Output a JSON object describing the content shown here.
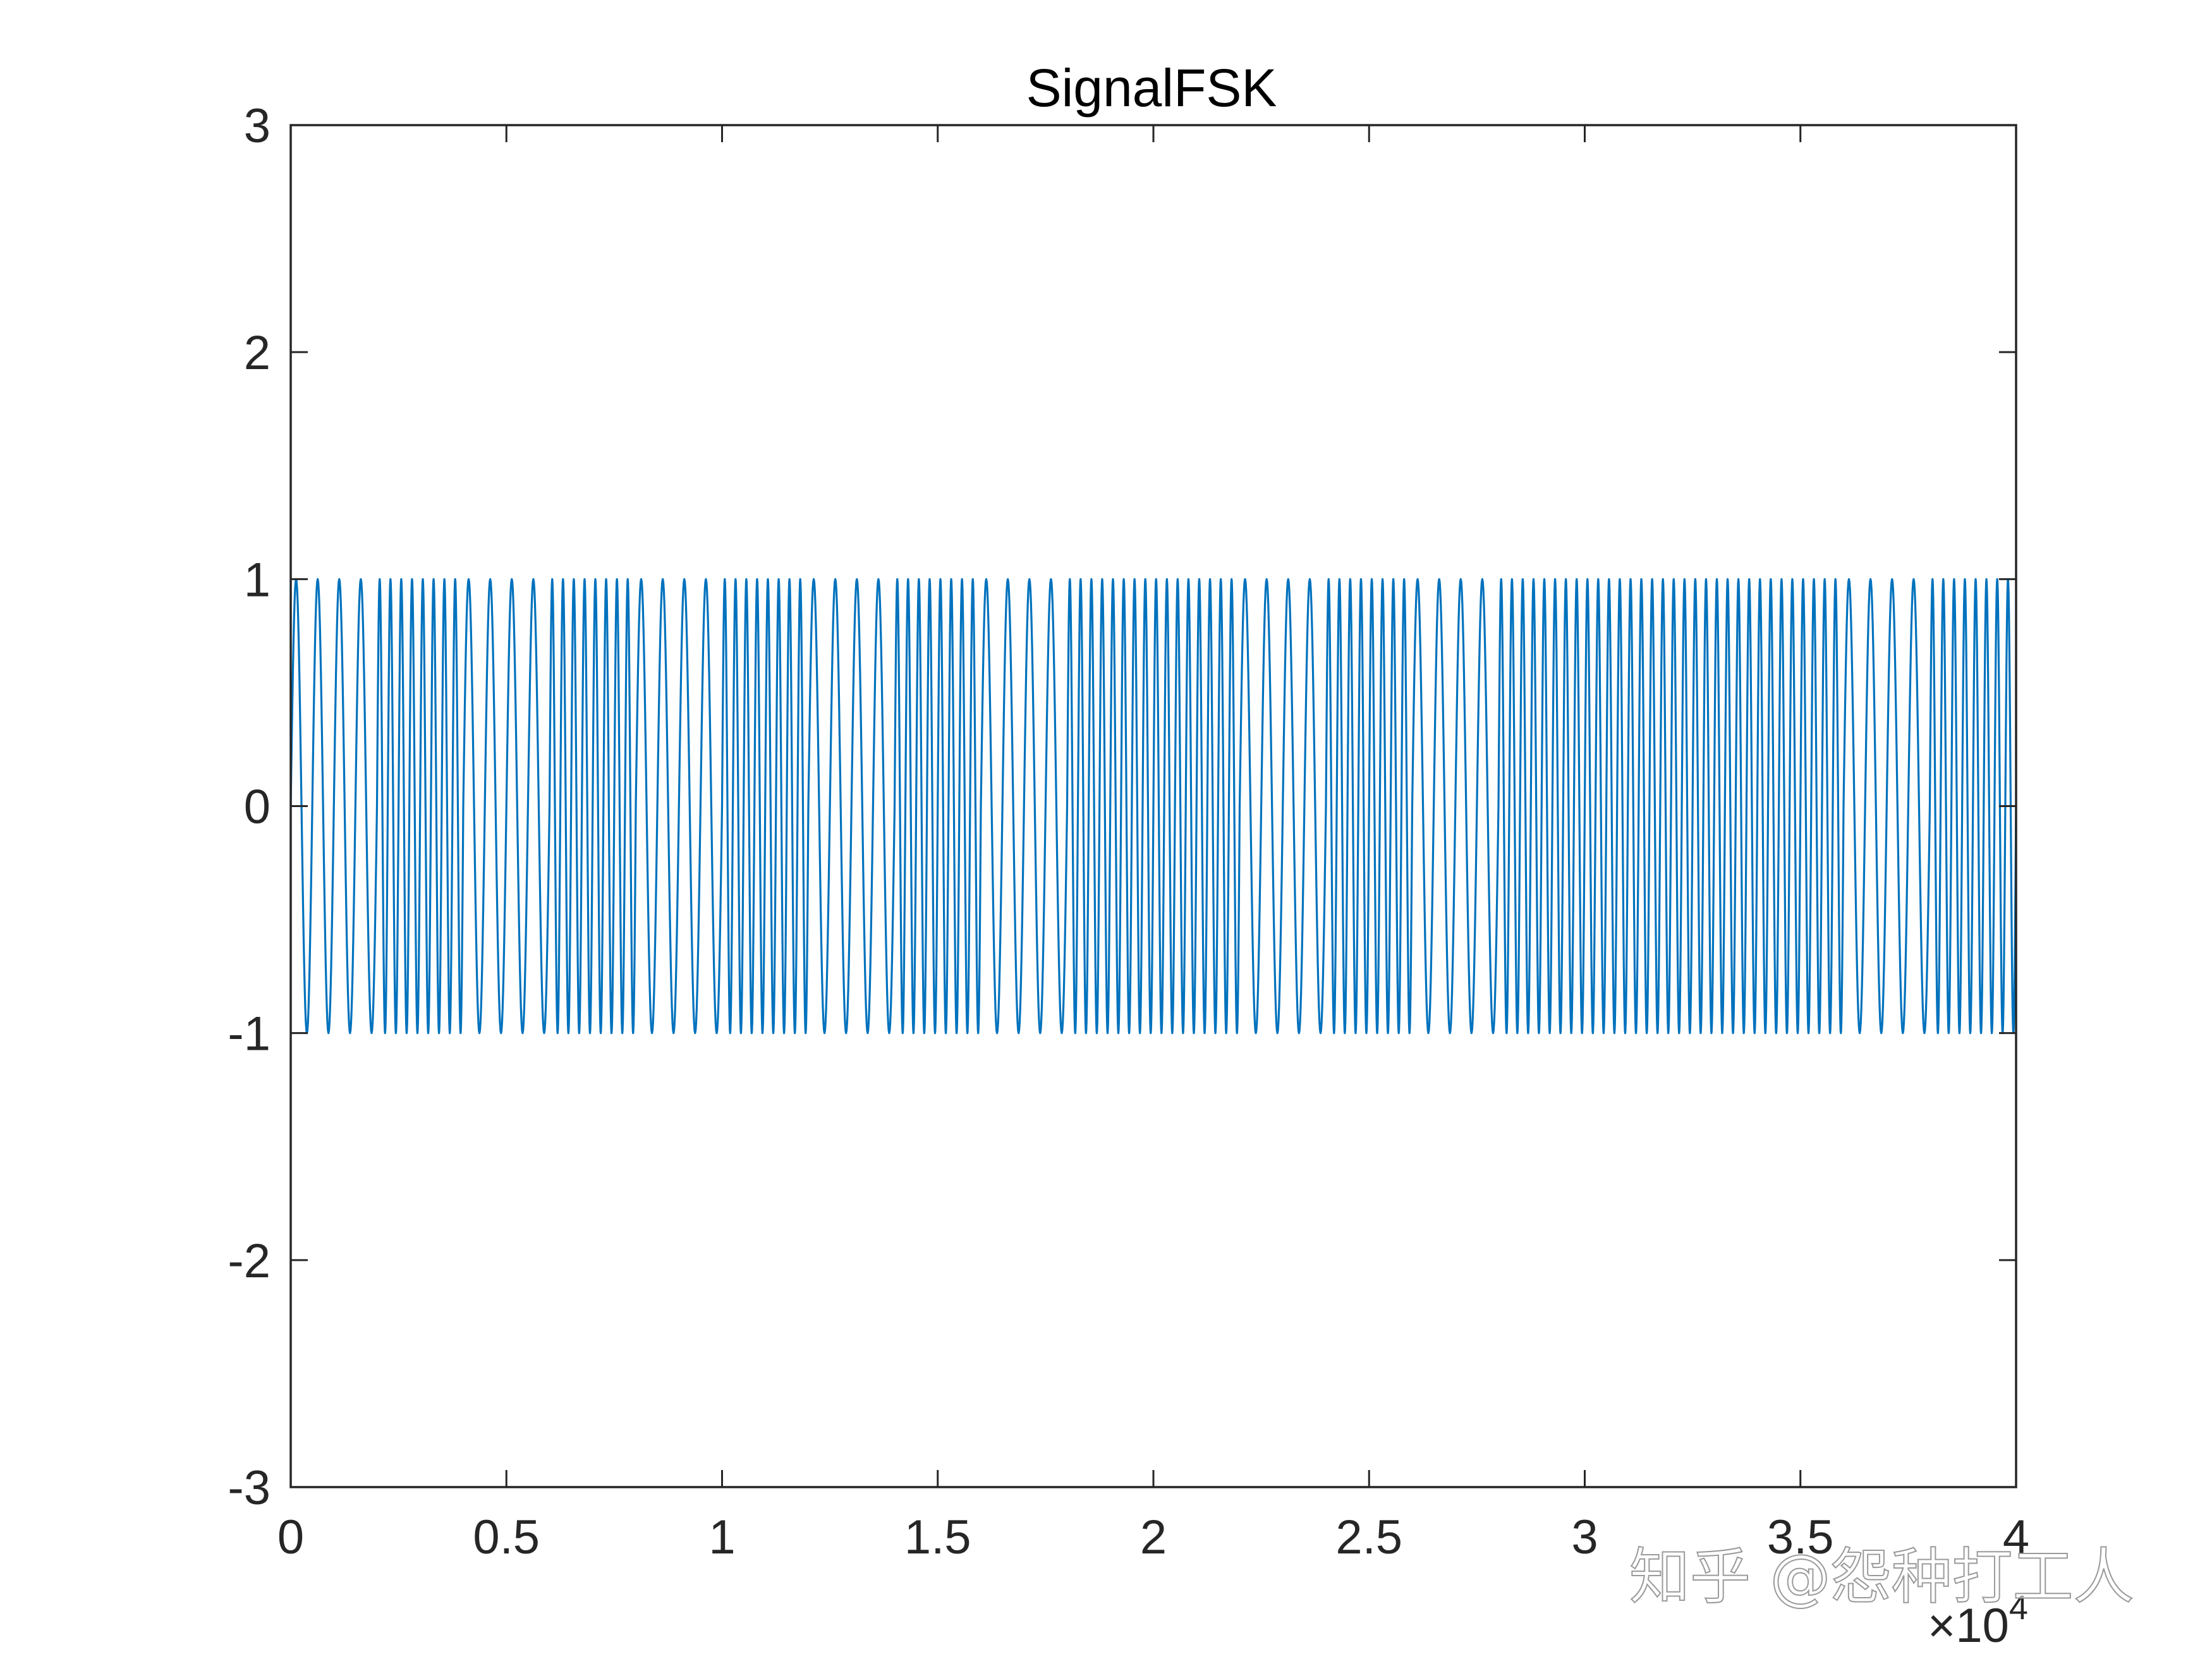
{
  "chart_data": {
    "type": "line",
    "title": "SignalFSK",
    "xlabel": "",
    "ylabel": "",
    "xlim": [
      0,
      40000
    ],
    "ylim": [
      -3,
      3
    ],
    "x_exponent_label": {
      "base": "×10",
      "power": "4"
    },
    "x_ticks": [
      0,
      5000,
      10000,
      15000,
      20000,
      25000,
      30000,
      35000,
      40000
    ],
    "x_tick_labels": [
      "0",
      "0.5",
      "1",
      "1.5",
      "2",
      "2.5",
      "3",
      "3.5",
      "4"
    ],
    "y_ticks": [
      -3,
      -2,
      -1,
      0,
      1,
      2,
      3
    ],
    "y_tick_labels": [
      "-3",
      "-2",
      "-1",
      "0",
      "1",
      "2",
      "3"
    ],
    "grid": false,
    "series": [
      {
        "color": "#0072BD",
        "amplitude": 1,
        "symbol_duration": 2000,
        "bits": [
          0,
          1,
          0,
          1,
          0,
          1,
          0,
          1,
          0,
          1,
          1,
          0,
          1,
          0,
          1,
          1,
          1,
          1,
          0,
          1
        ],
        "cycles_per_symbol": {
          "0": 4,
          "1": 8
        }
      }
    ]
  },
  "watermark": "知乎 @怨种打工人",
  "colors": {
    "axes": "#262626",
    "line": "#0072BD",
    "background": "#ffffff"
  }
}
